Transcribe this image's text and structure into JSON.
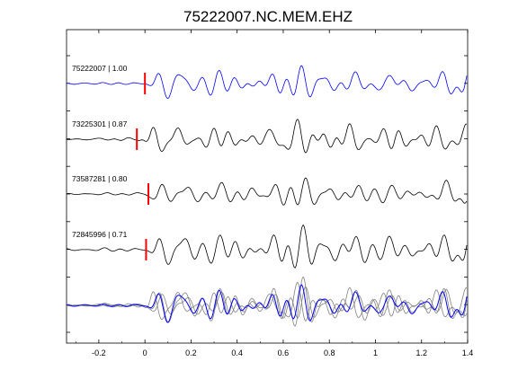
{
  "chart_data": {
    "type": "line",
    "title": "75222007.NC.MEM.EHZ",
    "xlabel": "",
    "ylabel": "",
    "xlim": [
      -0.34,
      1.4
    ],
    "x_ticks": [
      -0.2,
      0,
      0.2,
      0.4,
      0.6,
      0.8,
      1,
      1.2,
      1.4
    ],
    "x_tick_labels": [
      "-0.2",
      "0",
      "0.2",
      "0.4",
      "0.6",
      "0.8",
      "1",
      "1.2",
      "1.4"
    ],
    "grid": false,
    "legend": "none",
    "colors": {
      "reference": "#0000ff",
      "match": "#000000",
      "overlay_match": "#808080",
      "pick": "#ff0000"
    },
    "traces": [
      {
        "event_id": "75222007",
        "correlation": "1.00",
        "label": "75222007 | 1.00",
        "pick_time": 0.0,
        "lag": 0.0,
        "color": "#0000ff",
        "seed": 1
      },
      {
        "event_id": "73225301",
        "correlation": "0.87",
        "label": "73225301 | 0.87",
        "pick_time": -0.035,
        "lag": -0.02,
        "color": "#000000",
        "seed": 2
      },
      {
        "event_id": "73587281",
        "correlation": "0.80",
        "label": "73587281 | 0.80",
        "pick_time": 0.015,
        "lag": 0.015,
        "color": "#000000",
        "seed": 3
      },
      {
        "event_id": "72845996",
        "correlation": "0.71",
        "label": "72845996 | 0.71",
        "pick_time": 0.005,
        "lag": 0.005,
        "color": "#000000",
        "seed": 4
      }
    ]
  }
}
